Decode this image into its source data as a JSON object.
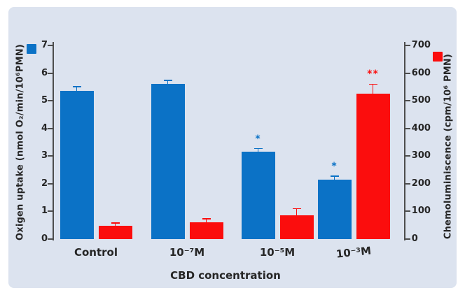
{
  "chart_data": {
    "type": "bar",
    "title": "",
    "categories": [
      "Control",
      "10⁻⁷M",
      "10⁻⁵M",
      "10⁻³M"
    ],
    "xlabel": "CBD concentration",
    "left_axis": {
      "label": "Oxigen uptake (nmol O₂/min/10⁶PMN)",
      "ticks": [
        0,
        1,
        2,
        3,
        4,
        5,
        6,
        7
      ],
      "range": [
        0,
        7
      ]
    },
    "right_axis": {
      "label": "Chemoluminiscence (cpm/10⁶ PMN)",
      "ticks": [
        0,
        100,
        200,
        300,
        400,
        500,
        600,
        700
      ],
      "range": [
        0,
        700
      ]
    },
    "series": [
      {
        "name": "oxygen-uptake",
        "axis": "left",
        "color": "#0b72c6",
        "values": [
          5.35,
          5.6,
          3.15,
          2.15
        ],
        "errors": [
          0.15,
          0.13,
          0.12,
          0.13
        ],
        "significance": [
          "",
          "",
          "*",
          "*"
        ]
      },
      {
        "name": "chemoluminiscence",
        "axis": "right",
        "color": "#fb0d0d",
        "values": [
          47,
          60,
          85,
          525
        ],
        "errors": [
          12,
          13,
          25,
          35
        ],
        "significance": [
          "",
          "",
          "",
          "**"
        ]
      }
    ],
    "legend": [
      {
        "name": "oxygen-uptake",
        "color": "#0b72c6"
      },
      {
        "name": "chemoluminiscence",
        "color": "#fb0d0d"
      }
    ],
    "layout_hints": {
      "grid": false,
      "legend_position": "beside-axis-labels"
    },
    "colors": {
      "background_panel": "#dce3ef",
      "text": "#262626",
      "axis": "#4d4d4d"
    }
  }
}
